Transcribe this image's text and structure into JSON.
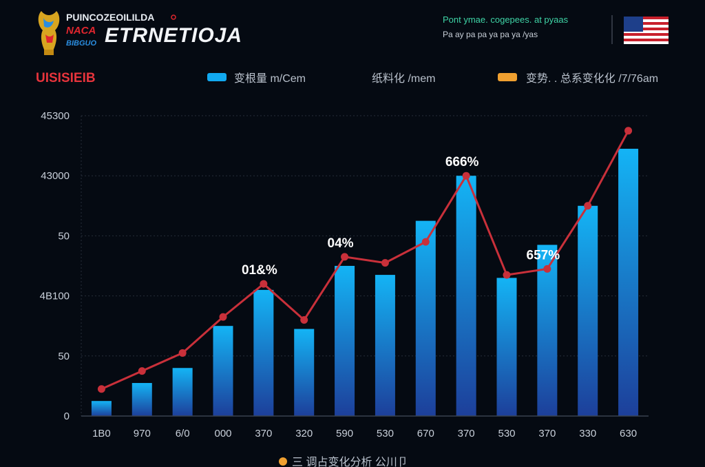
{
  "header": {
    "logo_line1": "PUINCOZEOILILDA",
    "logo_line2": "NACA",
    "logo_line3": "BIBGUO",
    "brand_title": "ETRNETIOJA",
    "right_line1": "Pont ymae. cogepees. at pyaas",
    "right_line2": "Pa ay pa pa ya pa ya /yas"
  },
  "section_label": "UISISIEIB",
  "legend": [
    {
      "label": "变根量 m/Cem",
      "swatch": "#11a9f0"
    },
    {
      "label": "纸料化 /mem",
      "swatch": ""
    },
    {
      "label": "变势. . 总系变化化 /7/76am",
      "swatch": "#f0a030"
    }
  ],
  "footer_note": "三 调占变化分析 公川卩",
  "colors": {
    "background": "#050a12",
    "bar_top": "#14b4f5",
    "bar_bottom": "#1d3f9a",
    "line": "#c9303a",
    "grid": "#2a3240",
    "accent_red": "#e0262e"
  },
  "chart_data": {
    "type": "bar",
    "title": "",
    "xlabel": "",
    "ylabel": "",
    "grid": true,
    "y_tick_labels": [
      "0",
      "50",
      "4B100",
      "50",
      "43000",
      "45300"
    ],
    "categories": [
      "1B0",
      "970",
      "6/0",
      "000",
      "370",
      "320",
      "590",
      "530",
      "670",
      "370",
      "530",
      "370",
      "330",
      "630"
    ],
    "ylim": [
      0,
      100
    ],
    "series": [
      {
        "kind": "bar",
        "values": [
          5,
          11,
          16,
          30,
          42,
          29,
          50,
          47,
          65,
          80,
          46,
          57,
          70,
          89
        ]
      },
      {
        "kind": "line",
        "values": [
          9,
          15,
          21,
          33,
          44,
          32,
          53,
          51,
          58,
          80,
          47,
          49,
          70,
          95
        ]
      }
    ],
    "annotations": [
      {
        "text": "01&%",
        "index": 4
      },
      {
        "text": "04%",
        "index": 6
      },
      {
        "text": "666%",
        "index": 9
      },
      {
        "text": "657%",
        "index": 11
      }
    ]
  }
}
